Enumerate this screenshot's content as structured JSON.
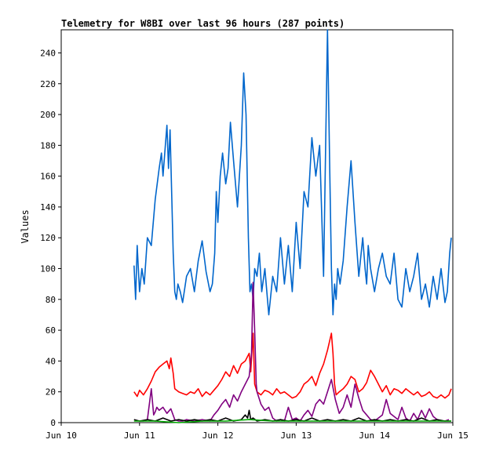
{
  "chart_data": {
    "type": "line",
    "title": "Telemetry for W8BI over last 96 hours (287 points)",
    "ylabel": "Values",
    "xlabel": "",
    "ylim": [
      0,
      255
    ],
    "xlim": [
      0,
      5
    ],
    "grid": false,
    "legend": "none",
    "yticks": [
      0,
      20,
      40,
      60,
      80,
      100,
      120,
      140,
      160,
      180,
      200,
      220,
      240
    ],
    "xticks": [
      {
        "x": 0,
        "label": "Jun 10"
      },
      {
        "x": 1,
        "label": "Jun 11"
      },
      {
        "x": 2,
        "label": "Jun 12"
      },
      {
        "x": 3,
        "label": "Jun 13"
      },
      {
        "x": 4,
        "label": "Jun 14"
      },
      {
        "x": 5,
        "label": "Jun 15"
      }
    ],
    "series": [
      {
        "color": "#0066cc",
        "x": [
          0.93,
          0.95,
          0.97,
          1.0,
          1.03,
          1.06,
          1.1,
          1.15,
          1.2,
          1.25,
          1.28,
          1.3,
          1.33,
          1.35,
          1.37,
          1.39,
          1.41,
          1.43,
          1.45,
          1.47,
          1.49,
          1.52,
          1.55,
          1.6,
          1.65,
          1.7,
          1.75,
          1.8,
          1.85,
          1.9,
          1.93,
          1.96,
          1.98,
          2.0,
          2.03,
          2.06,
          2.1,
          2.13,
          2.16,
          2.2,
          2.25,
          2.3,
          2.33,
          2.36,
          2.39,
          2.41,
          2.43,
          2.45,
          2.47,
          2.5,
          2.53,
          2.56,
          2.6,
          2.65,
          2.7,
          2.75,
          2.8,
          2.85,
          2.9,
          2.95,
          3.0,
          3.05,
          3.1,
          3.15,
          3.2,
          3.25,
          3.3,
          3.35,
          3.4,
          3.43,
          3.45,
          3.47,
          3.49,
          3.51,
          3.53,
          3.56,
          3.6,
          3.65,
          3.7,
          3.75,
          3.8,
          3.85,
          3.88,
          3.9,
          3.92,
          3.95,
          4.0,
          4.05,
          4.1,
          4.15,
          4.2,
          4.25,
          4.3,
          4.35,
          4.4,
          4.45,
          4.5,
          4.55,
          4.6,
          4.65,
          4.7,
          4.75,
          4.8,
          4.85,
          4.9,
          4.93,
          4.96,
          4.98
        ],
        "values": [
          102,
          80,
          115,
          85,
          100,
          90,
          120,
          115,
          145,
          165,
          175,
          160,
          180,
          193,
          165,
          190,
          150,
          110,
          85,
          80,
          90,
          85,
          78,
          95,
          100,
          85,
          105,
          118,
          98,
          85,
          90,
          110,
          150,
          130,
          160,
          175,
          155,
          165,
          195,
          170,
          140,
          180,
          227,
          200,
          120,
          85,
          90,
          80,
          100,
          95,
          110,
          85,
          100,
          70,
          95,
          85,
          120,
          90,
          115,
          85,
          130,
          100,
          150,
          140,
          185,
          160,
          180,
          95,
          255,
          160,
          100,
          70,
          90,
          80,
          100,
          90,
          105,
          140,
          170,
          130,
          95,
          120,
          100,
          90,
          115,
          100,
          85,
          100,
          110,
          95,
          90,
          110,
          80,
          75,
          100,
          85,
          95,
          110,
          80,
          90,
          75,
          95,
          80,
          100,
          78,
          85,
          110,
          120
        ]
      },
      {
        "color": "#ff0000",
        "x": [
          0.93,
          0.97,
          1.0,
          1.05,
          1.1,
          1.15,
          1.2,
          1.25,
          1.3,
          1.35,
          1.38,
          1.4,
          1.43,
          1.45,
          1.5,
          1.55,
          1.6,
          1.65,
          1.7,
          1.75,
          1.8,
          1.85,
          1.9,
          1.95,
          2.0,
          2.05,
          2.1,
          2.15,
          2.2,
          2.25,
          2.3,
          2.35,
          2.4,
          2.42,
          2.44,
          2.45,
          2.47,
          2.5,
          2.55,
          2.6,
          2.65,
          2.7,
          2.75,
          2.8,
          2.85,
          2.9,
          2.95,
          3.0,
          3.05,
          3.1,
          3.15,
          3.2,
          3.25,
          3.3,
          3.35,
          3.4,
          3.45,
          3.47,
          3.49,
          3.51,
          3.55,
          3.6,
          3.65,
          3.7,
          3.75,
          3.8,
          3.85,
          3.9,
          3.95,
          4.0,
          4.05,
          4.1,
          4.15,
          4.2,
          4.25,
          4.3,
          4.35,
          4.4,
          4.45,
          4.5,
          4.55,
          4.6,
          4.65,
          4.7,
          4.75,
          4.8,
          4.85,
          4.9,
          4.95,
          4.98
        ],
        "values": [
          20,
          17,
          21,
          18,
          22,
          27,
          33,
          36,
          38,
          40,
          35,
          42,
          32,
          22,
          20,
          19,
          18,
          20,
          19,
          22,
          17,
          20,
          18,
          21,
          24,
          28,
          33,
          30,
          37,
          32,
          38,
          40,
          45,
          33,
          50,
          58,
          25,
          20,
          18,
          21,
          20,
          18,
          22,
          19,
          20,
          18,
          16,
          17,
          20,
          25,
          27,
          30,
          24,
          32,
          38,
          47,
          58,
          45,
          25,
          18,
          20,
          22,
          25,
          30,
          28,
          20,
          22,
          26,
          34,
          30,
          25,
          20,
          24,
          18,
          22,
          21,
          19,
          22,
          20,
          18,
          20,
          17,
          18,
          20,
          17,
          16,
          18,
          16,
          18,
          22
        ]
      },
      {
        "color": "#800080",
        "x": [
          1.0,
          1.05,
          1.1,
          1.15,
          1.18,
          1.2,
          1.22,
          1.25,
          1.3,
          1.35,
          1.4,
          1.45,
          1.5,
          1.55,
          1.6,
          1.7,
          1.8,
          1.9,
          1.95,
          2.0,
          2.05,
          2.1,
          2.15,
          2.2,
          2.25,
          2.3,
          2.35,
          2.4,
          2.43,
          2.45,
          2.47,
          2.49,
          2.5,
          2.55,
          2.6,
          2.65,
          2.7,
          2.75,
          2.8,
          2.85,
          2.9,
          2.95,
          3.0,
          3.05,
          3.1,
          3.15,
          3.2,
          3.25,
          3.3,
          3.35,
          3.4,
          3.45,
          3.5,
          3.55,
          3.6,
          3.65,
          3.7,
          3.75,
          3.8,
          3.85,
          3.9,
          3.95,
          4.0,
          4.05,
          4.1,
          4.15,
          4.2,
          4.25,
          4.3,
          4.35,
          4.4,
          4.45,
          4.5,
          4.55,
          4.6,
          4.65,
          4.7,
          4.75,
          4.8,
          4.85,
          4.9,
          4.95
        ],
        "values": [
          1,
          1,
          2,
          22,
          5,
          7,
          10,
          8,
          10,
          6,
          9,
          2,
          1,
          1,
          2,
          1,
          2,
          1,
          5,
          8,
          12,
          15,
          10,
          18,
          14,
          20,
          25,
          30,
          45,
          91,
          60,
          25,
          20,
          12,
          8,
          10,
          3,
          1,
          2,
          1,
          10,
          2,
          3,
          1,
          5,
          8,
          4,
          12,
          15,
          12,
          20,
          28,
          15,
          6,
          10,
          18,
          10,
          25,
          16,
          8,
          5,
          2,
          1,
          3,
          5,
          15,
          6,
          4,
          2,
          10,
          3,
          1,
          6,
          2,
          8,
          3,
          9,
          4,
          2,
          1,
          1,
          2
        ]
      },
      {
        "color": "#000000",
        "x": [
          0.93,
          1.0,
          1.1,
          1.2,
          1.3,
          1.4,
          1.5,
          1.6,
          1.7,
          1.8,
          1.9,
          2.0,
          2.1,
          2.2,
          2.3,
          2.35,
          2.38,
          2.4,
          2.42,
          2.45,
          2.5,
          2.6,
          2.7,
          2.8,
          2.9,
          3.0,
          3.1,
          3.2,
          3.3,
          3.4,
          3.5,
          3.6,
          3.7,
          3.8,
          3.9,
          4.0,
          4.1,
          4.2,
          4.3,
          4.4,
          4.5,
          4.6,
          4.7,
          4.8,
          4.9,
          4.98
        ],
        "values": [
          2,
          1,
          2,
          1,
          3,
          1,
          2,
          1,
          2,
          1,
          2,
          1,
          3,
          1,
          2,
          5,
          3,
          8,
          2,
          3,
          1,
          2,
          1,
          2,
          1,
          2,
          1,
          3,
          1,
          2,
          1,
          2,
          1,
          3,
          1,
          2,
          1,
          2,
          1,
          2,
          1,
          3,
          1,
          2,
          1,
          1
        ]
      },
      {
        "color": "#00aa00",
        "x": [
          0.93,
          1.2,
          1.5,
          1.8,
          2.1,
          2.4,
          2.7,
          3.0,
          3.3,
          3.6,
          3.9,
          4.2,
          4.5,
          4.8,
          4.98
        ],
        "values": [
          1,
          1,
          0,
          1,
          1,
          2,
          1,
          1,
          1,
          1,
          1,
          1,
          1,
          1,
          1
        ]
      }
    ]
  }
}
